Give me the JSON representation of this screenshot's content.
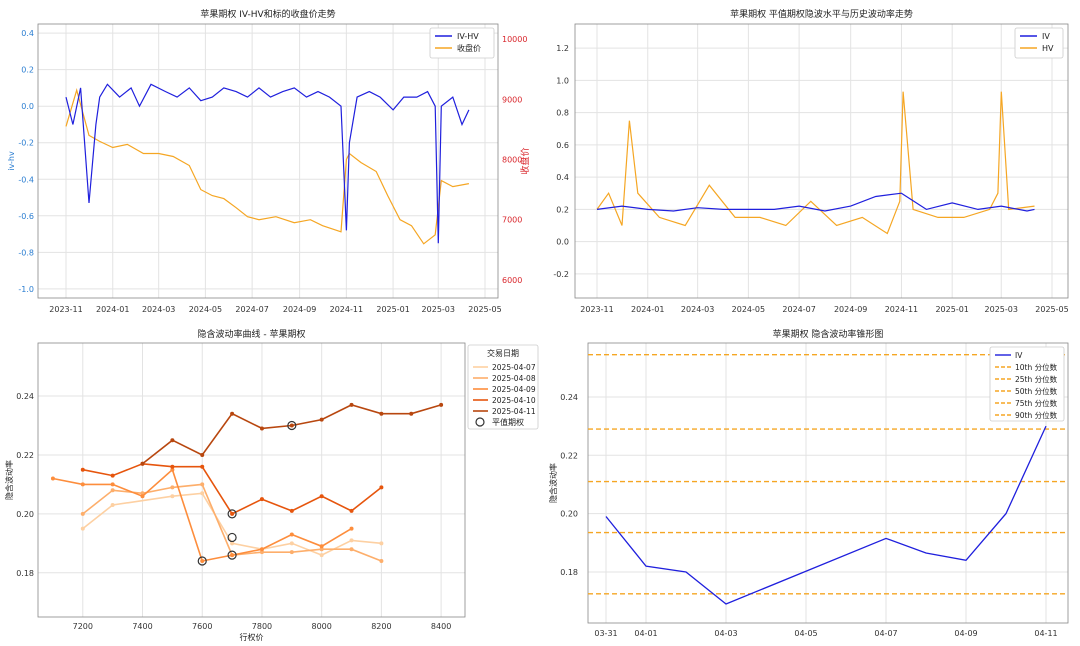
{
  "charts": {
    "c1": {
      "title": "苹果期权 IV-HV和标的收盘价走势",
      "ylabel_left": "iv-hv",
      "ylabel_right": "收盘价",
      "xticks": [
        "2023-11",
        "2024-01",
        "2024-03",
        "2024-05",
        "2024-07",
        "2024-09",
        "2024-11",
        "2025-01",
        "2025-03",
        "2025-05"
      ],
      "yticks_left": [
        "-1.0",
        "-0.8",
        "-0.6",
        "-0.4",
        "-0.2",
        "0.0",
        "0.2",
        "0.4"
      ],
      "yticks_right": [
        "6000",
        "7000",
        "8000",
        "9000",
        "10000"
      ],
      "legend": [
        "IV-HV",
        "收盘价"
      ]
    },
    "c2": {
      "title": "苹果期权 平值期权隐波水平与历史波动率走势",
      "xticks": [
        "2023-11",
        "2024-01",
        "2024-03",
        "2024-05",
        "2024-07",
        "2024-09",
        "2024-11",
        "2025-01",
        "2025-03",
        "2025-05"
      ],
      "yticks": [
        "-0.2",
        "0.0",
        "0.2",
        "0.4",
        "0.6",
        "0.8",
        "1.0",
        "1.2"
      ],
      "legend": [
        "IV",
        "HV"
      ]
    },
    "c3": {
      "title": "隐含波动率曲线 - 苹果期权",
      "xlabel": "行权价",
      "ylabel": "隐含波动率",
      "xticks": [
        "7200",
        "7400",
        "7600",
        "7800",
        "8000",
        "8200",
        "8400"
      ],
      "yticks": [
        "0.18",
        "0.20",
        "0.22",
        "0.24"
      ],
      "legend_title": "交易日期",
      "legend": [
        "2025-04-07",
        "2025-04-08",
        "2025-04-09",
        "2025-04-10",
        "2025-04-11"
      ],
      "atm_label": "平值期权"
    },
    "c4": {
      "title": "苹果期权 隐含波动率锥形图",
      "ylabel": "隐含波动率",
      "xticks": [
        "03-31",
        "04-01",
        "04-03",
        "04-05",
        "04-07",
        "04-09",
        "04-11"
      ],
      "yticks": [
        "0.18",
        "0.20",
        "0.22",
        "0.24"
      ],
      "legend": [
        "IV",
        "10th 分位数",
        "25th 分位数",
        "50th 分位数",
        "75th 分位数",
        "90th 分位数"
      ]
    }
  },
  "chart_data": [
    {
      "type": "line",
      "title": "苹果期权 IV-HV和标的收盘价走势",
      "ylabel": "iv-hv",
      "y2label": "收盘价",
      "ylim": [
        -1.05,
        0.45
      ],
      "y2lim": [
        5700,
        10250
      ],
      "series": [
        {
          "name": "IV-HV",
          "color": "#1f1fdd",
          "axis": "left",
          "x": [
            "2023-11-01",
            "2023-11-10",
            "2023-11-20",
            "2023-12-01",
            "2023-12-10",
            "2023-12-15",
            "2023-12-25",
            "2024-01-10",
            "2024-01-25",
            "2024-02-05",
            "2024-02-20",
            "2024-03-10",
            "2024-03-25",
            "2024-04-10",
            "2024-04-25",
            "2024-05-10",
            "2024-05-25",
            "2024-06-10",
            "2024-06-25",
            "2024-07-10",
            "2024-07-25",
            "2024-08-10",
            "2024-08-25",
            "2024-09-10",
            "2024-09-25",
            "2024-10-10",
            "2024-10-25",
            "2024-11-01",
            "2024-11-05",
            "2024-11-15",
            "2024-12-01",
            "2024-12-15",
            "2025-01-01",
            "2025-01-15",
            "2025-02-01",
            "2025-02-15",
            "2025-02-25",
            "2025-03-01",
            "2025-03-05",
            "2025-03-20",
            "2025-04-01",
            "2025-04-10"
          ],
          "y": [
            0.05,
            -0.1,
            0.1,
            -0.53,
            -0.1,
            0.05,
            0.12,
            0.05,
            0.1,
            0.0,
            0.12,
            0.08,
            0.05,
            0.1,
            0.03,
            0.05,
            0.1,
            0.08,
            0.05,
            0.1,
            0.05,
            0.08,
            0.1,
            0.05,
            0.08,
            0.05,
            0.0,
            -0.68,
            -0.2,
            0.05,
            0.08,
            0.05,
            -0.02,
            0.05,
            0.05,
            0.08,
            0.0,
            -0.75,
            0.0,
            0.05,
            -0.1,
            -0.02
          ]
        },
        {
          "name": "收盘价",
          "color": "#f5a623",
          "axis": "right",
          "x": [
            "2023-11-01",
            "2023-11-15",
            "2023-12-01",
            "2023-12-15",
            "2024-01-01",
            "2024-01-20",
            "2024-02-10",
            "2024-03-01",
            "2024-03-20",
            "2024-04-10",
            "2024-04-25",
            "2024-05-10",
            "2024-05-25",
            "2024-06-10",
            "2024-06-25",
            "2024-07-10",
            "2024-08-01",
            "2024-08-25",
            "2024-09-15",
            "2024-10-01",
            "2024-10-25",
            "2024-11-01",
            "2024-11-05",
            "2024-11-20",
            "2024-12-10",
            "2024-12-25",
            "2025-01-10",
            "2025-01-25",
            "2025-02-10",
            "2025-02-25",
            "2025-03-05",
            "2025-03-20",
            "2025-04-10"
          ],
          "y": [
            8550,
            9150,
            8400,
            8300,
            8200,
            8250,
            8100,
            8100,
            8050,
            7900,
            7500,
            7400,
            7350,
            7200,
            7050,
            7000,
            7050,
            6950,
            7000,
            6900,
            6800,
            8000,
            8100,
            7950,
            7800,
            7400,
            7000,
            6900,
            6600,
            6750,
            7650,
            7550,
            7600
          ]
        }
      ]
    },
    {
      "type": "line",
      "title": "苹果期权 平值期权隐波水平与历史波动率走势",
      "ylim": [
        -0.35,
        1.35
      ],
      "series": [
        {
          "name": "IV",
          "color": "#1f1fdd",
          "x": [
            "2023-11-01",
            "2023-12-01",
            "2024-01-01",
            "2024-02-01",
            "2024-03-01",
            "2024-04-01",
            "2024-05-01",
            "2024-06-01",
            "2024-07-01",
            "2024-08-01",
            "2024-09-01",
            "2024-10-01",
            "2024-11-01",
            "2024-12-01",
            "2025-01-01",
            "2025-02-01",
            "2025-03-01",
            "2025-04-01",
            "2025-04-10"
          ],
          "y": [
            0.2,
            0.22,
            0.2,
            0.19,
            0.21,
            0.2,
            0.2,
            0.2,
            0.22,
            0.19,
            0.22,
            0.28,
            0.3,
            0.2,
            0.24,
            0.2,
            0.22,
            0.19,
            0.2
          ]
        },
        {
          "name": "HV",
          "color": "#f5a623",
          "x": [
            "2023-11-01",
            "2023-11-15",
            "2023-12-01",
            "2023-12-10",
            "2023-12-20",
            "2024-01-15",
            "2024-02-15",
            "2024-03-15",
            "2024-04-15",
            "2024-05-15",
            "2024-06-15",
            "2024-07-15",
            "2024-08-15",
            "2024-09-15",
            "2024-10-15",
            "2024-10-30",
            "2024-11-03",
            "2024-11-15",
            "2024-12-15",
            "2025-01-15",
            "2025-02-15",
            "2025-02-25",
            "2025-03-01",
            "2025-03-10",
            "2025-04-10"
          ],
          "y": [
            0.2,
            0.3,
            0.1,
            0.75,
            0.3,
            0.15,
            0.1,
            0.35,
            0.15,
            0.15,
            0.1,
            0.25,
            0.1,
            0.15,
            0.05,
            0.25,
            0.93,
            0.2,
            0.15,
            0.15,
            0.2,
            0.3,
            0.93,
            0.2,
            0.22
          ]
        }
      ]
    },
    {
      "type": "line",
      "title": "隐含波动率曲线 - 苹果期权",
      "xlabel": "行权价",
      "ylabel": "隐含波动率",
      "xlim": [
        7050,
        8480
      ],
      "ylim": [
        0.165,
        0.258
      ],
      "series": [
        {
          "name": "2025-04-07",
          "color": "#fdd0a2",
          "x": [
            7200,
            7300,
            7500,
            7600,
            7700,
            7800,
            7900,
            8000,
            8100,
            8200
          ],
          "y": [
            0.195,
            0.203,
            0.206,
            0.207,
            0.19,
            0.188,
            0.19,
            0.186,
            0.191,
            0.19
          ]
        },
        {
          "name": "2025-04-08",
          "color": "#fdae6b",
          "x": [
            7200,
            7300,
            7400,
            7500,
            7600,
            7700,
            7800,
            7900,
            8000,
            8100,
            8200
          ],
          "y": [
            0.2,
            0.208,
            0.207,
            0.209,
            0.21,
            0.186,
            0.187,
            0.187,
            0.188,
            0.188,
            0.184
          ]
        },
        {
          "name": "2025-04-09",
          "color": "#fd8d3c",
          "x": [
            7100,
            7200,
            7300,
            7400,
            7500,
            7600,
            7700,
            7800,
            7900,
            8000,
            8100
          ],
          "y": [
            0.212,
            0.21,
            0.21,
            0.206,
            0.215,
            0.184,
            0.186,
            0.188,
            0.193,
            0.189,
            0.195
          ]
        },
        {
          "name": "2025-04-10",
          "color": "#e6550d",
          "x": [
            7200,
            7300,
            7400,
            7500,
            7600,
            7700,
            7800,
            7900,
            8000,
            8100,
            8200
          ],
          "y": [
            0.215,
            0.213,
            0.217,
            0.216,
            0.216,
            0.2,
            0.205,
            0.201,
            0.206,
            0.201,
            0.209
          ]
        },
        {
          "name": "2025-04-11",
          "color": "#b8470f",
          "x": [
            7400,
            7500,
            7600,
            7700,
            7800,
            7900,
            8000,
            8100,
            8200,
            8300,
            8400
          ],
          "y": [
            0.217,
            0.225,
            0.22,
            0.234,
            0.229,
            0.23,
            0.232,
            0.237,
            0.234,
            0.234,
            0.237
          ]
        }
      ],
      "atm": [
        {
          "x": 7600,
          "y": 0.184
        },
        {
          "x": 7700,
          "y": 0.186
        },
        {
          "x": 7700,
          "y": 0.192
        },
        {
          "x": 7700,
          "y": 0.2
        },
        {
          "x": 7900,
          "y": 0.23
        }
      ]
    },
    {
      "type": "line",
      "title": "苹果期权 隐含波动率锥形图",
      "ylabel": "隐含波动率",
      "ylim": [
        0.1625,
        0.2585
      ],
      "xlim_days": [
        0,
        11
      ],
      "series": [
        {
          "name": "IV",
          "color": "#1f1fdd",
          "x": [
            "03-31",
            "04-01",
            "04-02",
            "04-03",
            "04-07",
            "04-08",
            "04-09",
            "04-10",
            "04-11"
          ],
          "y": [
            0.199,
            0.182,
            0.18,
            0.169,
            0.1915,
            0.1865,
            0.184,
            0.2,
            0.23
          ]
        }
      ],
      "quantiles": [
        {
          "name": "10th 分位数",
          "value": 0.1725
        },
        {
          "name": "25th 分位数",
          "value": 0.1935
        },
        {
          "name": "50th 分位数",
          "value": 0.211
        },
        {
          "name": "75th 分位数",
          "value": 0.229
        },
        {
          "name": "90th 分位数",
          "value": 0.2545
        }
      ],
      "quantile_color": "#f5a623"
    }
  ]
}
